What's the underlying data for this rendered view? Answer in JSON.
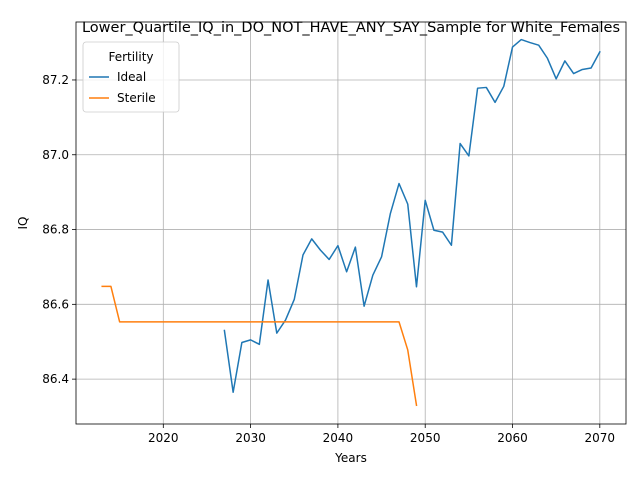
{
  "chart_data": {
    "type": "line",
    "title": "Lower_Quartile_IQ_in_DO_NOT_HAVE_ANY_SAY_Sample for White_Females",
    "xlabel": "Years",
    "ylabel": "IQ",
    "xlim": [
      2010,
      2073
    ],
    "ylim": [
      86.28,
      87.355
    ],
    "xticks": [
      2020,
      2030,
      2040,
      2050,
      2060,
      2070
    ],
    "yticks": [
      86.4,
      86.6,
      86.8,
      87.0,
      87.2
    ],
    "ytick_labels": [
      "86.4",
      "86.6",
      "86.8",
      "87.0",
      "87.2"
    ],
    "grid": true,
    "legend": {
      "title": "Fertility",
      "placement": "top-left"
    },
    "series": [
      {
        "name": "Ideal",
        "color": "#1f77b4",
        "x": [
          2027,
          2028,
          2029,
          2030,
          2031,
          2032,
          2033,
          2034,
          2035,
          2036,
          2037,
          2038,
          2039,
          2040,
          2041,
          2042,
          2043,
          2044,
          2045,
          2046,
          2047,
          2048,
          2049,
          2050,
          2051,
          2052,
          2053,
          2054,
          2055,
          2056,
          2057,
          2058,
          2059,
          2060,
          2061,
          2062,
          2063,
          2064,
          2065,
          2066,
          2067,
          2068,
          2069,
          2070
        ],
        "y": [
          86.53,
          86.365,
          86.498,
          86.505,
          86.493,
          86.665,
          86.523,
          86.558,
          86.613,
          86.732,
          86.775,
          86.745,
          86.72,
          86.757,
          86.687,
          86.753,
          86.595,
          86.678,
          86.727,
          86.842,
          86.923,
          86.868,
          86.647,
          86.878,
          86.798,
          86.793,
          86.758,
          87.03,
          86.997,
          87.178,
          87.18,
          87.14,
          87.183,
          87.288,
          87.308,
          87.3,
          87.293,
          87.258,
          87.203,
          87.251,
          87.217,
          87.228,
          87.232,
          87.275
        ]
      },
      {
        "name": "Sterile",
        "color": "#ff7f0e",
        "x": [
          2013,
          2014,
          2015,
          2016,
          2017,
          2018,
          2019,
          2020,
          2021,
          2022,
          2023,
          2024,
          2025,
          2026,
          2027,
          2028,
          2029,
          2030,
          2031,
          2032,
          2033,
          2034,
          2035,
          2036,
          2037,
          2038,
          2039,
          2040,
          2041,
          2042,
          2043,
          2044,
          2045,
          2046,
          2047,
          2048,
          2049
        ],
        "y": [
          86.648,
          86.648,
          86.553,
          86.553,
          86.553,
          86.553,
          86.553,
          86.553,
          86.553,
          86.553,
          86.553,
          86.553,
          86.553,
          86.553,
          86.553,
          86.553,
          86.553,
          86.553,
          86.553,
          86.553,
          86.553,
          86.553,
          86.553,
          86.553,
          86.553,
          86.553,
          86.553,
          86.553,
          86.553,
          86.553,
          86.553,
          86.553,
          86.553,
          86.553,
          86.553,
          86.478,
          86.33
        ]
      }
    ]
  }
}
